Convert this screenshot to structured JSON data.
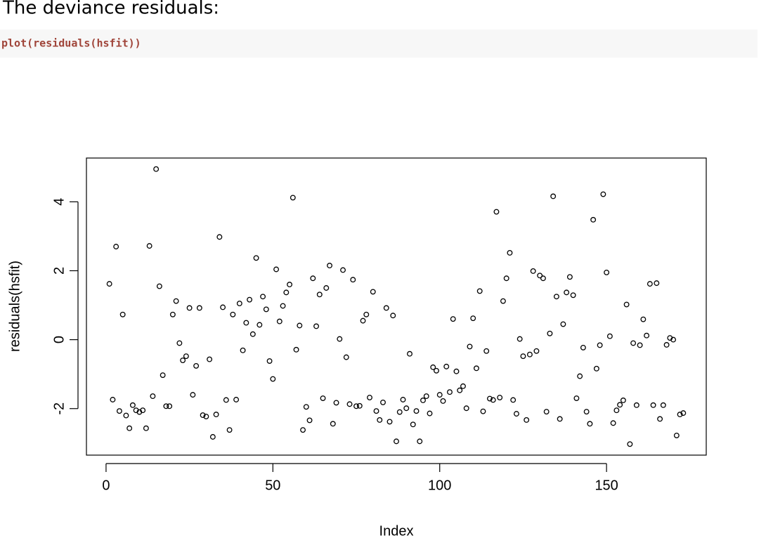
{
  "header": {
    "text": "The deviance residuals:"
  },
  "code": "plot(residuals(hsfit))",
  "chart_data": {
    "type": "scatter",
    "xlabel": "Index",
    "ylabel": "residuals(hsfit)",
    "xlim": [
      -5.88,
      179.88
    ],
    "ylim": [
      -3.35,
      5.27
    ],
    "xticks": [
      0,
      50,
      100,
      150
    ],
    "yticks": [
      -2,
      0,
      2,
      4
    ],
    "color": "#000000",
    "x": [
      1,
      2,
      3,
      4,
      5,
      6,
      7,
      8,
      9,
      10,
      11,
      12,
      13,
      14,
      15,
      16,
      17,
      18,
      19,
      20,
      21,
      22,
      23,
      24,
      25,
      26,
      27,
      28,
      29,
      30,
      31,
      32,
      33,
      34,
      35,
      36,
      37,
      38,
      39,
      40,
      41,
      42,
      43,
      44,
      45,
      46,
      47,
      48,
      49,
      50,
      51,
      52,
      53,
      54,
      55,
      56,
      57,
      58,
      59,
      60,
      61,
      62,
      63,
      64,
      65,
      66,
      67,
      68,
      69,
      70,
      71,
      72,
      73,
      74,
      75,
      76,
      77,
      78,
      79,
      80,
      81,
      82,
      83,
      84,
      85,
      86,
      87,
      88,
      89,
      90,
      91,
      92,
      93,
      94,
      95,
      96,
      97,
      98,
      99,
      100,
      101,
      102,
      103,
      104,
      105,
      106,
      107,
      108,
      109,
      110,
      111,
      112,
      113,
      114,
      115,
      116,
      117,
      118,
      119,
      120,
      121,
      122,
      123,
      124,
      125,
      126,
      127,
      128,
      129,
      130,
      131,
      132,
      133,
      134,
      135,
      136,
      137,
      138,
      139,
      140,
      141,
      142,
      143,
      144,
      145,
      146,
      147,
      148,
      149,
      150,
      151,
      152,
      153,
      154,
      155,
      156,
      157,
      158,
      159,
      160,
      161,
      162,
      163,
      164,
      165,
      166,
      167,
      168,
      169,
      170,
      171,
      172,
      173
    ],
    "values": [
      1.62,
      -1.74,
      2.7,
      -2.07,
      0.73,
      -2.2,
      -2.57,
      -1.9,
      -2.05,
      -2.1,
      -2.05,
      -2.57,
      2.72,
      -1.64,
      4.95,
      1.55,
      -1.03,
      -1.93,
      -1.93,
      0.73,
      1.12,
      -0.1,
      -0.6,
      -0.48,
      0.92,
      -1.6,
      -0.76,
      0.92,
      -2.19,
      -2.23,
      -0.57,
      -2.82,
      -2.17,
      2.98,
      0.94,
      -1.75,
      -2.62,
      0.73,
      -1.74,
      1.05,
      -0.31,
      0.49,
      1.16,
      0.16,
      2.37,
      0.43,
      1.25,
      0.88,
      -0.62,
      -1.14,
      2.04,
      0.53,
      0.98,
      1.37,
      1.6,
      4.12,
      -0.29,
      0.41,
      -2.62,
      -1.95,
      -2.34,
      1.78,
      0.39,
      1.31,
      -1.7,
      1.5,
      2.15,
      -2.44,
      -1.83,
      0.02,
      2.02,
      -0.51,
      -1.87,
      1.74,
      -1.93,
      -1.92,
      0.55,
      0.73,
      -1.68,
      1.39,
      -2.07,
      -2.33,
      -1.82,
      0.92,
      -2.38,
      0.7,
      -2.95,
      -2.1,
      -1.74,
      -1.99,
      -0.41,
      -2.46,
      -2.07,
      -2.95,
      -1.76,
      -1.64,
      -2.14,
      -0.8,
      -0.9,
      -1.6,
      -1.78,
      -0.78,
      -1.52,
      0.6,
      -0.92,
      -1.47,
      -1.35,
      -1.99,
      -0.2,
      0.62,
      -0.83,
      1.41,
      -2.08,
      -0.33,
      -1.71,
      -1.75,
      3.71,
      -1.68,
      1.12,
      1.78,
      2.52,
      -1.75,
      -2.15,
      0.02,
      -0.48,
      -2.33,
      -0.43,
      1.99,
      -0.33,
      1.86,
      1.78,
      -2.09,
      0.18,
      4.16,
      1.25,
      -2.3,
      0.45,
      1.37,
      1.82,
      1.29,
      -1.7,
      -1.06,
      -0.23,
      -2.09,
      -2.44,
      3.48,
      -0.84,
      -0.16,
      4.22,
      1.95,
      0.1,
      -2.42,
      -2.05,
      -1.89,
      -1.76,
      1.02,
      -3.03,
      -0.1,
      -1.9,
      -0.16,
      0.59,
      0.12,
      1.62,
      -1.9,
      1.64,
      -2.3,
      -1.9,
      -0.15,
      0.05,
      0.0,
      -2.78,
      -2.17,
      -2.13
    ]
  }
}
